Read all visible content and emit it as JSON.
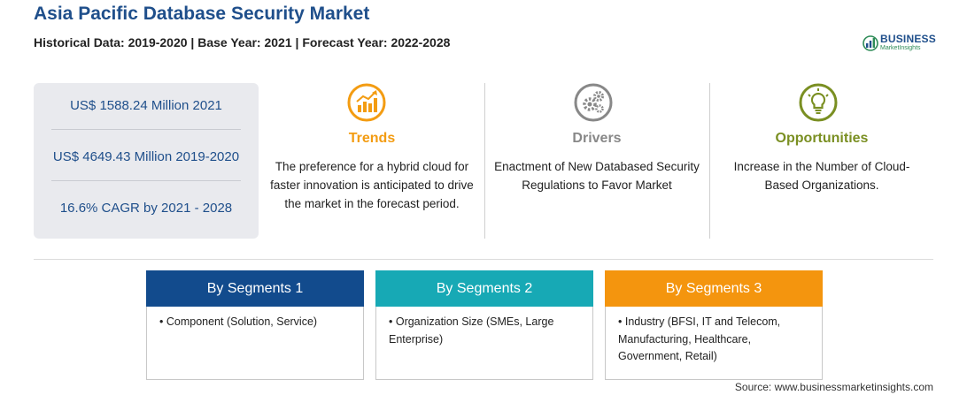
{
  "title": "Asia Pacific Database Security Market",
  "subtitle": "Historical Data: 2019-2020 | Base Year: 2021 | Forecast Year: 2022-2028",
  "logo": {
    "brand": "BUSINESS",
    "tagline": "MarketInsights"
  },
  "stats": [
    "US$ 1588.24 Million 2021",
    "US$ 4649.43 Million 2019-2020",
    "16.6% CAGR by 2021 - 2028"
  ],
  "columns": {
    "trends": {
      "heading": "Trends",
      "icon": "growth-chart-icon",
      "text": "The preference for a hybrid cloud for faster innovation is anticipated to drive the market in the forecast period."
    },
    "drivers": {
      "heading": "Drivers",
      "icon": "gears-icon",
      "text": "Enactment of New Databased Security Regulations to Favor Market"
    },
    "opportunities": {
      "heading": "Opportunities",
      "icon": "lightbulb-icon",
      "text": "Increase in the Number of Cloud-Based Organizations."
    }
  },
  "segments": [
    {
      "title": "By Segments 1",
      "item": "• Component (Solution, Service)"
    },
    {
      "title": "By Segments 2",
      "item": "• Organization Size (SMEs, Large Enterprise)"
    },
    {
      "title": "By Segments 3",
      "item": "• Industry (BFSI, IT and Telecom, Manufacturing, Healthcare, Government, Retail)"
    }
  ],
  "source": "Source: www.businessmarketinsights.com",
  "colors": {
    "title": "#1f4f8b",
    "trends": "#f39c12",
    "drivers": "#888888",
    "opportunities": "#7a8f22",
    "segment1": "#124b8d",
    "segment2": "#17a9b5",
    "segment3": "#f4950e"
  }
}
